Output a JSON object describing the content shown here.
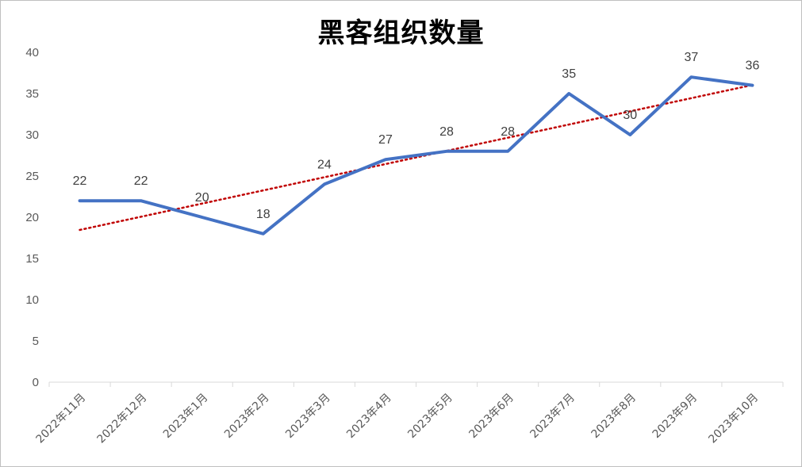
{
  "chart_data": {
    "type": "line",
    "title": "黑客组织数量",
    "categories": [
      "2022年11月",
      "2022年12月",
      "2023年1月",
      "2023年2月",
      "2023年3月",
      "2023年4月",
      "2023年5月",
      "2023年6月",
      "2023年7月",
      "2023年8月",
      "2023年9月",
      "2023年10月"
    ],
    "series": [
      {
        "values": [
          22,
          22,
          20,
          18,
          24,
          27,
          28,
          28,
          35,
          30,
          37,
          36
        ],
        "color": "#4472c4"
      }
    ],
    "trendline": {
      "type": "linear",
      "color": "#c00000",
      "style": "dotted"
    },
    "ylim": [
      0,
      40
    ],
    "yticks": [
      0,
      5,
      10,
      15,
      20,
      25,
      30,
      35,
      40
    ],
    "grid": false,
    "data_labels": true,
    "legend": "none"
  }
}
